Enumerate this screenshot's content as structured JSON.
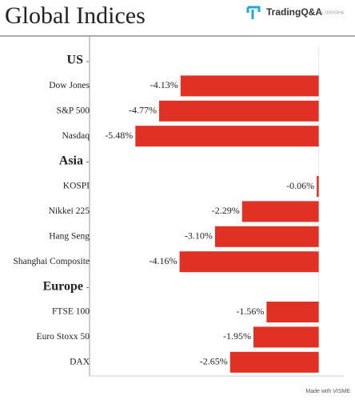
{
  "chart_data": {
    "type": "bar",
    "orientation": "horizontal",
    "title": "Global Indices",
    "brand": "TradingQ&A",
    "brand_by": "by ZERODHA",
    "footer": "Made with VISME",
    "color": "#e03124",
    "xlim": [
      -6.85,
      0.75
    ],
    "groups": [
      {
        "name": "US",
        "categories": [
          "Dow Jones",
          "S&P 500",
          "Nasdaq"
        ],
        "values": [
          -4.13,
          -4.77,
          -5.48
        ],
        "value_labels": [
          "-4.13%",
          "-4.77%",
          "-5.48%"
        ]
      },
      {
        "name": "Asia",
        "categories": [
          "KOSPI",
          "Nikkei 225",
          "Hang Seng",
          "Shanghai Composite"
        ],
        "values": [
          -0.06,
          -2.29,
          -3.1,
          -4.16
        ],
        "value_labels": [
          "-0.06%",
          "-2.29%",
          "-3.10%",
          "-4.16%"
        ]
      },
      {
        "name": "Europe",
        "categories": [
          "FTSE 100",
          "Euro Stoxx 50",
          "DAX"
        ],
        "values": [
          -1.56,
          -1.95,
          -2.65
        ],
        "value_labels": [
          "-1.56%",
          "-1.95%",
          "-2.65%"
        ]
      }
    ]
  }
}
